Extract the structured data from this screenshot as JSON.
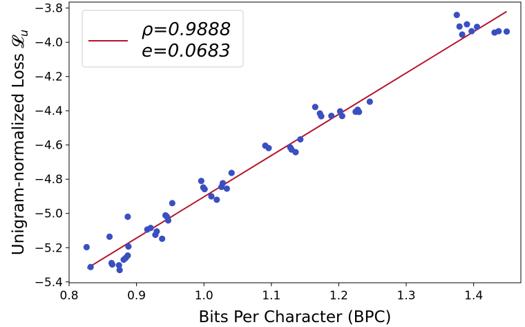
{
  "chart_data": {
    "type": "scatter",
    "xlabel": "Bits Per Character (BPC)",
    "ylabel": "Unigram-normalized Loss 𝓛",
    "ylabel_sub": "u",
    "xlim": [
      0.8,
      1.47
    ],
    "ylim": [
      -5.405,
      -3.765
    ],
    "x_ticks": [
      0.8,
      0.9,
      1.0,
      1.1,
      1.2,
      1.3,
      1.4
    ],
    "x_tick_labels": [
      "0.8",
      "0.9",
      "1.0",
      "1.1",
      "1.2",
      "1.3",
      "1.4"
    ],
    "y_ticks": [
      -5.4,
      -5.2,
      -5.0,
      -4.8,
      -4.6,
      -4.4,
      -4.2,
      -4.0,
      -3.8
    ],
    "y_tick_labels": [
      "−5.4",
      "−5.2",
      "−5.0",
      "−4.8",
      "−4.6",
      "−4.4",
      "−4.2",
      "−4.0",
      "−3.8"
    ],
    "grid": false,
    "legend_position": "top-left",
    "legend": {
      "line1": "ρ=0.9888",
      "line2": "e=0.0683"
    },
    "fit_line": {
      "color": "#b5132b",
      "x": [
        0.827,
        1.449
      ],
      "y": [
        -5.32,
        -3.82
      ]
    },
    "points": {
      "color": "#3a4fc0",
      "x": [
        0.826,
        0.832,
        0.86,
        0.863,
        0.864,
        0.874,
        0.875,
        0.881,
        0.884,
        0.887,
        0.887,
        0.888,
        0.916,
        0.921,
        0.928,
        0.93,
        0.938,
        0.943,
        0.945,
        0.947,
        0.953,
        0.996,
        0.999,
        1.001,
        1.011,
        1.019,
        1.026,
        1.028,
        1.034,
        1.041,
        1.091,
        1.096,
        1.128,
        1.13,
        1.136,
        1.143,
        1.165,
        1.172,
        1.174,
        1.189,
        1.202,
        1.205,
        1.225,
        1.228,
        1.23,
        1.246,
        1.375,
        1.379,
        1.383,
        1.39,
        1.397,
        1.405,
        1.431,
        1.437,
        1.449
      ],
      "y": [
        -5.197,
        -5.313,
        -5.136,
        -5.29,
        -5.298,
        -5.303,
        -5.331,
        -5.27,
        -5.26,
        -5.246,
        -5.019,
        -5.193,
        -5.094,
        -5.085,
        -5.125,
        -5.105,
        -5.148,
        -5.011,
        -5.018,
        -5.041,
        -4.94,
        -4.81,
        -4.848,
        -4.858,
        -4.9,
        -4.92,
        -4.845,
        -4.823,
        -4.855,
        -4.763,
        -4.604,
        -4.618,
        -4.614,
        -4.627,
        -4.642,
        -4.567,
        -4.378,
        -4.416,
        -4.432,
        -4.43,
        -4.403,
        -4.431,
        -4.406,
        -4.394,
        -4.407,
        -4.347,
        -3.84,
        -3.908,
        -3.955,
        -3.895,
        -3.935,
        -3.91,
        -3.943,
        -3.935,
        -3.937
      ]
    }
  }
}
